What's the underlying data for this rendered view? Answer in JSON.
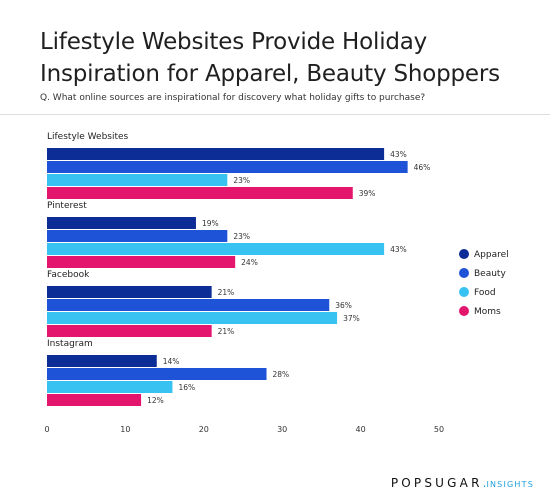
{
  "header": {
    "title_line1": "Lifestyle Websites Provide Holiday",
    "title_line2": "Inspiration for Apparel, Beauty Shoppers",
    "subtitle": "Q. What online sources are inspirational for discovery what holiday gifts to purchase?"
  },
  "footer": {
    "brand_main": "POPSUGAR",
    "brand_dot": ".",
    "brand_suffix": "INSIGHTS"
  },
  "chart_data": {
    "type": "bar",
    "orientation": "horizontal",
    "title": "Lifestyle Websites Provide Holiday Inspiration for Apparel, Beauty Shoppers",
    "categories": [
      "Lifestyle Websites",
      "Pinterest",
      "Facebook",
      "Instagram"
    ],
    "series": [
      {
        "name": "Apparel",
        "color": "#0c2d95",
        "values": [
          43,
          19,
          21,
          14
        ]
      },
      {
        "name": "Beauty",
        "color": "#1e53d8",
        "values": [
          46,
          23,
          36,
          28
        ]
      },
      {
        "name": "Food",
        "color": "#38c2f1",
        "values": [
          23,
          43,
          37,
          16
        ]
      },
      {
        "name": "Moms",
        "color": "#e3156d",
        "values": [
          39,
          24,
          21,
          12
        ]
      }
    ],
    "value_suffix": "%",
    "xlim": [
      0,
      50
    ],
    "xticks": [
      0,
      10,
      20,
      30,
      40,
      50
    ],
    "grid": false,
    "legend_position": "right"
  }
}
